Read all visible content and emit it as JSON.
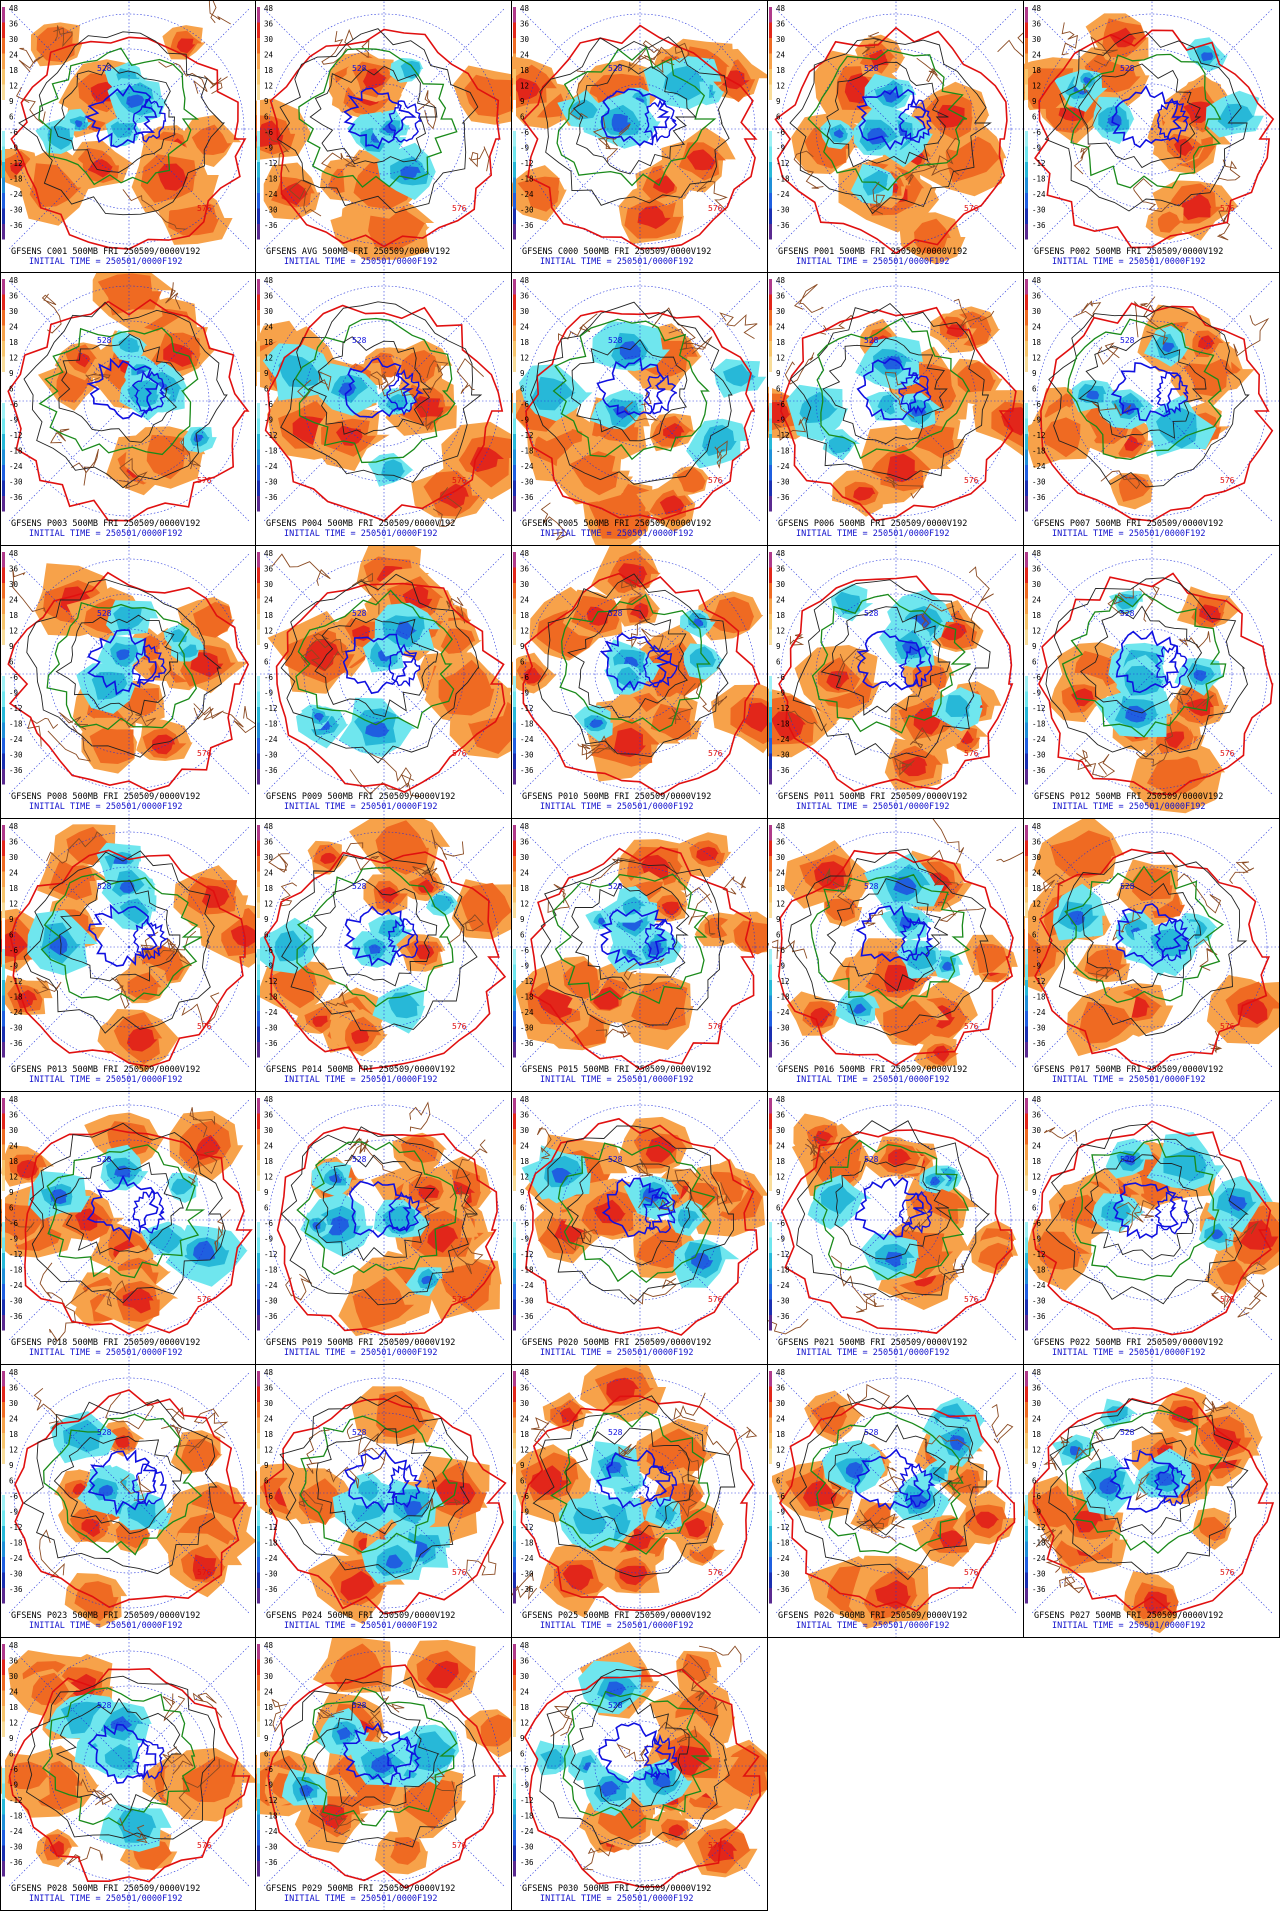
{
  "colorbar_ticks": [
    "48",
    "36",
    "30",
    "24",
    "18",
    "12",
    "9",
    "6",
    "-6",
    "-9",
    "-12",
    "-18",
    "-24",
    "-30",
    "-36"
  ],
  "contour_labels": [
    "576",
    "528"
  ],
  "panels": [
    {
      "title": "GFSENS C001 500MB FRI 250509/0000V192",
      "init": "INITIAL TIME = 250501/0000F192"
    },
    {
      "title": "GFSENS AVG 500MB FRI 250509/0000V192",
      "init": "INITIAL TIME = 250501/0000F192"
    },
    {
      "title": "GFSENS C000 500MB FRI 250509/0000V192",
      "init": "INITIAL TIME = 250501/0000F192"
    },
    {
      "title": "GFSENS P001 500MB FRI 250509/0000V192",
      "init": "INITIAL TIME = 250501/0000F192"
    },
    {
      "title": "GFSENS P002 500MB FRI 250509/0000V192",
      "init": "INITIAL TIME = 250501/0000F192"
    },
    {
      "title": "GFSENS P003 500MB FRI 250509/0000V192",
      "init": "INITIAL TIME = 250501/0000F192"
    },
    {
      "title": "GFSENS P004 500MB FRI 250509/0000V192",
      "init": "INITIAL TIME = 250501/0000F192"
    },
    {
      "title": "GFSENS P005 500MB FRI 250509/0000V192",
      "init": "INITIAL TIME = 250501/0000F192"
    },
    {
      "title": "GFSENS P006 500MB FRI 250509/0000V192",
      "init": "INITIAL TIME = 250501/0000F192"
    },
    {
      "title": "GFSENS P007 500MB FRI 250509/0000V192",
      "init": "INITIAL TIME = 250501/0000F192"
    },
    {
      "title": "GFSENS P008 500MB FRI 250509/0000V192",
      "init": "INITIAL TIME = 250501/0000F192"
    },
    {
      "title": "GFSENS P009 500MB FRI 250509/0000V192",
      "init": "INITIAL TIME = 250501/0000F192"
    },
    {
      "title": "GFSENS P010 500MB FRI 250509/0000V192",
      "init": "INITIAL TIME = 250501/0000F192"
    },
    {
      "title": "GFSENS P011 500MB FRI 250509/0000V192",
      "init": "INITIAL TIME = 250501/0000F192"
    },
    {
      "title": "GFSENS P012 500MB FRI 250509/0000V192",
      "init": "INITIAL TIME = 250501/0000F192"
    },
    {
      "title": "GFSENS P013 500MB FRI 250509/0000V192",
      "init": "INITIAL TIME = 250501/0000F192"
    },
    {
      "title": "GFSENS P014 500MB FRI 250509/0000V192",
      "init": "INITIAL TIME = 250501/0000F192"
    },
    {
      "title": "GFSENS P015 500MB FRI 250509/0000V192",
      "init": "INITIAL TIME = 250501/0000F192"
    },
    {
      "title": "GFSENS P016 500MB FRI 250509/0000V192",
      "init": "INITIAL TIME = 250501/0000F192"
    },
    {
      "title": "GFSENS P017 500MB FRI 250509/0000V192",
      "init": "INITIAL TIME = 250501/0000F192"
    },
    {
      "title": "GFSENS P018 500MB FRI 250509/0000V192",
      "init": "INITIAL TIME = 250501/0000F192"
    },
    {
      "title": "GFSENS P019 500MB FRI 250509/0000V192",
      "init": "INITIAL TIME = 250501/0000F192"
    },
    {
      "title": "GFSENS P020 500MB FRI 250509/0000V192",
      "init": "INITIAL TIME = 250501/0000F192"
    },
    {
      "title": "GFSENS P021 500MB FRI 250509/0000V192",
      "init": "INITIAL TIME = 250501/0000F192"
    },
    {
      "title": "GFSENS P022 500MB FRI 250509/0000V192",
      "init": "INITIAL TIME = 250501/0000F192"
    },
    {
      "title": "GFSENS P023 500MB FRI 250509/0000V192",
      "init": "INITIAL TIME = 250501/0000F192"
    },
    {
      "title": "GFSENS P024 500MB FRI 250509/0000V192",
      "init": "INITIAL TIME = 250501/0000F192"
    },
    {
      "title": "GFSENS P025 500MB FRI 250509/0000V192",
      "init": "INITIAL TIME = 250501/0000F192"
    },
    {
      "title": "GFSENS P026 500MB FRI 250509/0000V192",
      "init": "INITIAL TIME = 250501/0000F192"
    },
    {
      "title": "GFSENS P027 500MB FRI 250509/0000V192",
      "init": "INITIAL TIME = 250501/0000F192"
    },
    {
      "title": "GFSENS P028 500MB FRI 250509/0000V192",
      "init": "INITIAL TIME = 250501/0000F192"
    },
    {
      "title": "GFSENS P029 500MB FRI 250509/0000V192",
      "init": "INITIAL TIME = 250501/0000F192"
    },
    {
      "title": "GFSENS P030 500MB FRI 250509/0000V192",
      "init": "INITIAL TIME = 250501/0000F192"
    }
  ],
  "colors": {
    "positive": [
      "#f7a24a",
      "#ef6a22",
      "#e2261a"
    ],
    "negative": [
      "#6fe6ee",
      "#27b8d8",
      "#1f5fe0"
    ],
    "contour_high": "#e01010",
    "contour_mid": "#1a8a1a",
    "contour_low": "#1010e0",
    "coast": "#8a4a22",
    "grid": "#2233dd"
  }
}
